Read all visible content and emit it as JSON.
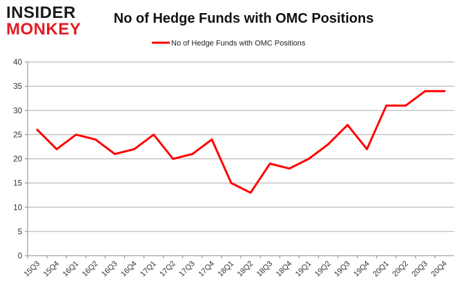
{
  "logo": {
    "line1": "INSIDER",
    "line2": "MONKEY"
  },
  "colors": {
    "series": "#ff0000",
    "grid": "#aaaaaa",
    "axis": "#888888",
    "logo_red": "#e31b23"
  },
  "chart_data": {
    "type": "line",
    "title": "No of Hedge Funds with OMC Positions",
    "xlabel": "",
    "ylabel": "",
    "ylim": [
      0,
      40
    ],
    "yticks": [
      0,
      5,
      10,
      15,
      20,
      25,
      30,
      35,
      40
    ],
    "grid": true,
    "legend_position": "top-center",
    "categories": [
      "15Q3",
      "15Q4",
      "16Q1",
      "16Q2",
      "16Q3",
      "16Q4",
      "17Q1",
      "17Q2",
      "17Q3",
      "17Q4",
      "18Q1",
      "18Q2",
      "18Q3",
      "18Q4",
      "19Q1",
      "19Q2",
      "19Q3",
      "19Q4",
      "20Q1",
      "20Q2",
      "20Q3",
      "20Q4"
    ],
    "series": [
      {
        "name": "No of Hedge Funds with OMC Positions",
        "values": [
          26,
          22,
          25,
          24,
          21,
          22,
          25,
          20,
          21,
          24,
          15,
          13,
          19,
          18,
          20,
          23,
          27,
          22,
          31,
          31,
          34,
          34
        ]
      }
    ]
  }
}
